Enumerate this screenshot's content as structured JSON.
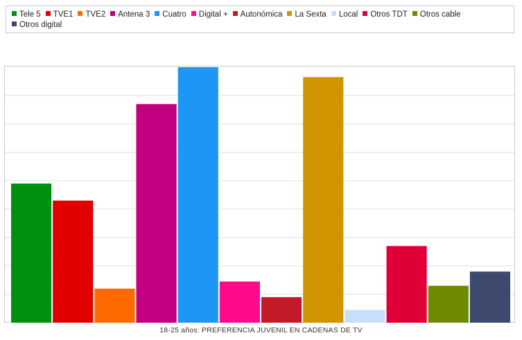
{
  "chart_data": {
    "type": "bar",
    "title": "18-25 años: PREFERENCIA JUVENIL EN CADENAS DE TV",
    "xlabel": "",
    "ylabel": "",
    "ylim": [
      0,
      9
    ],
    "grid": true,
    "legend_position": "top",
    "series": [
      {
        "name": "Tele 5",
        "value": 4.9,
        "color": "#009010"
      },
      {
        "name": "TVE1",
        "value": 4.3,
        "color": "#e00000"
      },
      {
        "name": "TVE2",
        "value": 1.2,
        "color": "#ff6a00"
      },
      {
        "name": "Antena 3",
        "value": 7.7,
        "color": "#c2007f"
      },
      {
        "name": "Cuatro",
        "value": 9.0,
        "color": "#1e96f5"
      },
      {
        "name": "Digital +",
        "value": 1.45,
        "color": "#ff0a8c"
      },
      {
        "name": "Autonómica",
        "value": 0.9,
        "color": "#c21a28"
      },
      {
        "name": "La Sexta",
        "value": 8.65,
        "color": "#d09400"
      },
      {
        "name": "Local",
        "value": 0.45,
        "color": "#c7dffa"
      },
      {
        "name": "Otros TDT",
        "value": 2.7,
        "color": "#e00038"
      },
      {
        "name": "Otros cable",
        "value": 1.3,
        "color": "#6e8b00"
      },
      {
        "name": "Otros digital",
        "value": 1.8,
        "color": "#3d4a6e"
      }
    ]
  }
}
